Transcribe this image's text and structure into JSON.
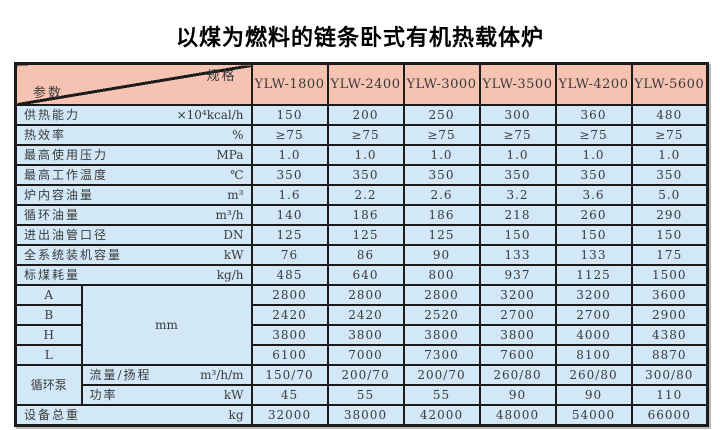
{
  "title": "以煤为燃料的链条卧式有机热载体炉",
  "colors": {
    "header_bg": "#f6c3b2",
    "body_bg": "#d2e8f7",
    "border": "#1b1b1b",
    "text": "#3a3a3a"
  },
  "table": {
    "corner": {
      "top_right": "规格",
      "bottom_left": "参数"
    },
    "models": [
      "YLW-1800",
      "YLW-2400",
      "YLW-3000",
      "YLW-3500",
      "YLW-4200",
      "YLW-5600"
    ],
    "rows": [
      {
        "label": "供热能力",
        "unit": "×10⁴kcal/h",
        "values": [
          "150",
          "200",
          "250",
          "300",
          "360",
          "480"
        ]
      },
      {
        "label": "热效率",
        "unit": "%",
        "values": [
          "≥75",
          "≥75",
          "≥75",
          "≥75",
          "≥75",
          "≥75"
        ]
      },
      {
        "label": "最高使用压力",
        "unit": "MPa",
        "values": [
          "1.0",
          "1.0",
          "1.0",
          "1.0",
          "1.0",
          "1.0"
        ]
      },
      {
        "label": "最高工作温度",
        "unit": "℃",
        "values": [
          "350",
          "350",
          "350",
          "350",
          "350",
          "350"
        ]
      },
      {
        "label": "炉内容油量",
        "unit": "m³",
        "values": [
          "1.6",
          "2.2",
          "2.6",
          "3.2",
          "3.6",
          "5.0"
        ]
      },
      {
        "label": "循环油量",
        "unit": "m³/h",
        "values": [
          "140",
          "186",
          "186",
          "218",
          "260",
          "290"
        ]
      },
      {
        "label": "进出油管口径",
        "unit": "DN",
        "values": [
          "125",
          "125",
          "125",
          "150",
          "150",
          "150"
        ]
      },
      {
        "label": "全系统装机容量",
        "unit": "kW",
        "values": [
          "76",
          "86",
          "90",
          "133",
          "133",
          "175"
        ]
      },
      {
        "label": "标煤耗量",
        "unit": "kg/h",
        "values": [
          "485",
          "640",
          "800",
          "937",
          "1125",
          "1500"
        ]
      }
    ],
    "dimensions": {
      "unit": "mm",
      "rows": [
        {
          "label": "A",
          "values": [
            "2800",
            "2800",
            "2800",
            "3200",
            "3200",
            "3600"
          ]
        },
        {
          "label": "B",
          "values": [
            "2420",
            "2420",
            "2520",
            "2700",
            "2700",
            "2900"
          ]
        },
        {
          "label": "H",
          "values": [
            "3800",
            "3800",
            "3800",
            "3800",
            "4000",
            "4380"
          ]
        },
        {
          "label": "L",
          "values": [
            "6100",
            "7000",
            "7300",
            "7600",
            "8100",
            "8870"
          ]
        }
      ]
    },
    "pump": {
      "label": "循环泵",
      "rows": [
        {
          "label": "流量/扬程",
          "unit": "m³/h/m",
          "values": [
            "150/70",
            "200/70",
            "200/70",
            "260/80",
            "260/80",
            "300/80"
          ]
        },
        {
          "label": "功率",
          "unit": "kW",
          "values": [
            "45",
            "55",
            "55",
            "90",
            "90",
            "110"
          ]
        }
      ]
    },
    "total": {
      "label": "设备总重",
      "unit": "kg",
      "values": [
        "32000",
        "38000",
        "42000",
        "48000",
        "54000",
        "66000"
      ]
    }
  }
}
